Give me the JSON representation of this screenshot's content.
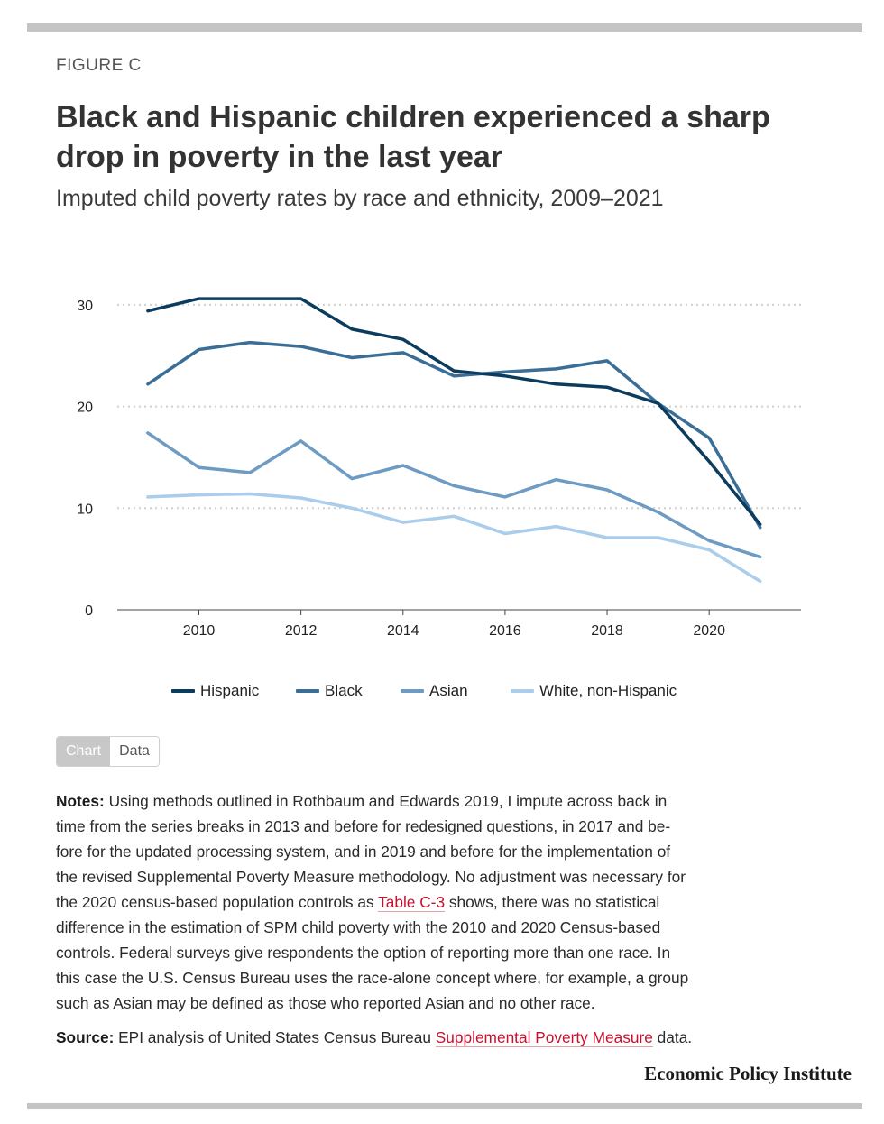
{
  "eyebrow": "FIGURE C",
  "title": "Black and Hispanic children experienced a sharp drop in poverty in the last year",
  "subtitle": "Imputed child poverty rates by race and ethnicity, 2009–2021",
  "colors": {
    "hispanic": "#0b3c5d",
    "black": "#3a6e96",
    "asian": "#6d9bc3",
    "white": "#a9cdeb",
    "grid": "#cfcfcf",
    "axis": "#444444",
    "link": "#c8102e"
  },
  "chart_data": {
    "type": "line",
    "x": [
      2009,
      2010,
      2011,
      2012,
      2013,
      2014,
      2015,
      2016,
      2017,
      2018,
      2019,
      2020,
      2021
    ],
    "xticks": [
      2010,
      2012,
      2014,
      2016,
      2018,
      2020
    ],
    "xtick_labels": [
      "2010",
      "2012",
      "2014",
      "2016",
      "2018",
      "2020"
    ],
    "yticks": [
      0,
      10,
      20,
      30
    ],
    "ytick_labels": [
      "0",
      "10",
      "20",
      "30"
    ],
    "xlim": [
      2008.4,
      2021.8
    ],
    "ylim": [
      0,
      30.7
    ],
    "grid": "horizontal dotted",
    "legend_position": "bottom",
    "series": [
      {
        "key": "hispanic",
        "name": "Hispanic",
        "values": [
          29.4,
          30.6,
          30.6,
          30.6,
          27.6,
          26.6,
          23.5,
          23.0,
          22.2,
          21.9,
          20.3,
          14.6,
          8.4
        ]
      },
      {
        "key": "black",
        "name": "Black",
        "values": [
          22.2,
          25.6,
          26.3,
          25.9,
          24.8,
          25.3,
          23.0,
          23.4,
          23.7,
          24.5,
          20.3,
          16.9,
          8.1
        ]
      },
      {
        "key": "asian",
        "name": "Asian",
        "values": [
          17.4,
          14.0,
          13.5,
          16.6,
          12.9,
          14.2,
          12.2,
          11.1,
          12.8,
          11.8,
          9.6,
          6.8,
          5.2
        ]
      },
      {
        "key": "white",
        "name": "White, non-Hispanic",
        "values": [
          11.1,
          11.3,
          11.4,
          11.0,
          10.0,
          8.6,
          9.2,
          7.5,
          8.2,
          7.1,
          7.1,
          5.9,
          2.8
        ]
      }
    ]
  },
  "toggle": {
    "chart": "Chart",
    "data": "Data"
  },
  "notes": {
    "label": "Notes:",
    "line_1": "Using methods outlined in Rothbaum and Edwards 2019, I impute across back in",
    "line_2": "time from the series breaks in 2013 and before for redesigned questions, in 2017 and be-",
    "line_3": "fore for the updated processing system, and in 2019 and before for the implementation of",
    "line_4": "the revised Supplemental Poverty Measure methodology. No adjustment was necessary for",
    "line_5_before": "the 2020 census-based population controls as",
    "line_5_link": "Table C-3",
    "line_5_after": "shows, there was no statistical",
    "line_6": "difference in the estimation of SPM child poverty with the 2010 and 2020 Census-based",
    "line_7": "controls. Federal surveys give respondents the option of reporting more than one race. In",
    "line_8": "this case the U.S. Census Bureau uses the race-alone concept where, for example, a group",
    "line_9": "such as Asian may be defined as those who reported Asian and no other race."
  },
  "source": {
    "label": "Source:",
    "before": "EPI analysis of United States Census Bureau",
    "link": "Supplemental Poverty Measure",
    "after": "data."
  },
  "brand": "Economic Policy Institute"
}
